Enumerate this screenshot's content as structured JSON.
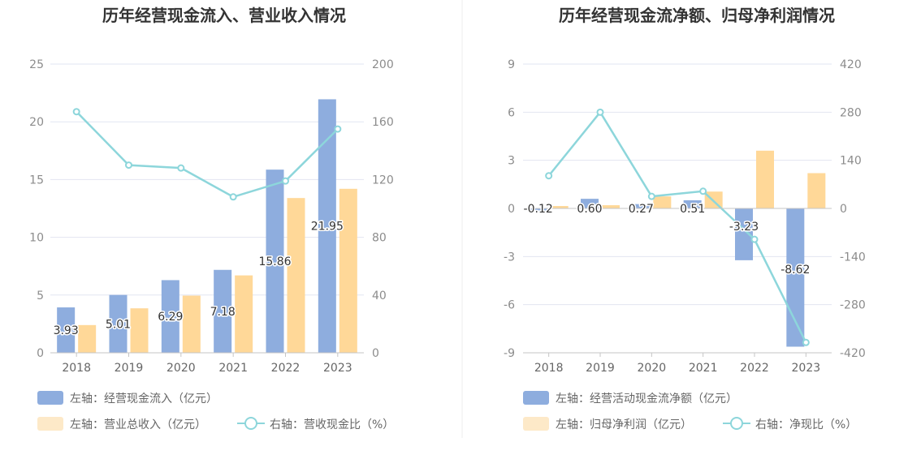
{
  "colors": {
    "bar_primary": "#8eadde",
    "bar_secondary": "#ffd898",
    "legend_secondary": "#fde9c8",
    "line": "#8dd6db",
    "grid": "#e2e5f1",
    "axis": "#c5c5c5",
    "divider": "#eeeeee"
  },
  "chart_data": [
    {
      "type": "bar",
      "title": "历年经营现金流入、营业收入情况",
      "categories": [
        "2018",
        "2019",
        "2020",
        "2021",
        "2022",
        "2023"
      ],
      "y_left": {
        "ylim": [
          0,
          25
        ],
        "ticks": [
          "0",
          "5",
          "10",
          "15",
          "20",
          "25"
        ]
      },
      "y_right": {
        "ylim": [
          0,
          200
        ],
        "ticks": [
          "0",
          "40",
          "80",
          "120",
          "160",
          "200"
        ]
      },
      "grid": true,
      "series": [
        {
          "name": "左轴：经营现金流入（亿元）",
          "type": "bar",
          "axis": "left",
          "values": [
            3.93,
            5.01,
            6.29,
            7.18,
            15.86,
            21.95
          ],
          "labels": [
            "3.93",
            "5.01",
            "6.29",
            "7.18",
            "15.86",
            "21.95"
          ]
        },
        {
          "name": "左轴：营业总收入（亿元）",
          "type": "bar",
          "axis": "left",
          "values": [
            2.4,
            3.85,
            4.95,
            6.7,
            13.4,
            14.2
          ]
        },
        {
          "name": "右轴：营收现金比（%）",
          "type": "line",
          "axis": "right",
          "values": [
            167,
            130,
            128,
            108,
            119,
            155
          ]
        }
      ],
      "legend_position": "bottom"
    },
    {
      "type": "bar",
      "title": "历年经营现金流净额、归母净利润情况",
      "categories": [
        "2018",
        "2019",
        "2020",
        "2021",
        "2022",
        "2023"
      ],
      "y_left": {
        "ylim": [
          -9,
          9
        ],
        "ticks": [
          "-9",
          "-6",
          "-3",
          "0",
          "3",
          "6",
          "9"
        ]
      },
      "y_right": {
        "ylim": [
          -420,
          420
        ],
        "ticks": [
          "-420",
          "-280",
          "-140",
          "0",
          "140",
          "280",
          "420"
        ]
      },
      "grid": true,
      "series": [
        {
          "name": "左轴：经营活动现金流净额（亿元）",
          "type": "bar",
          "axis": "left",
          "values": [
            -0.12,
            0.6,
            0.27,
            0.51,
            -3.23,
            -8.62
          ],
          "labels": [
            "-0.12",
            "0.60",
            "0.27",
            "0.51",
            "-3.23",
            "-8.62"
          ]
        },
        {
          "name": "左轴：归母净利润（亿元）",
          "type": "bar",
          "axis": "left",
          "values": [
            0.15,
            0.2,
            0.75,
            1.05,
            3.6,
            2.2
          ]
        },
        {
          "name": "右轴：净现比（%）",
          "type": "line",
          "axis": "right",
          "values": [
            95,
            280,
            35,
            50,
            -90,
            -390
          ]
        }
      ],
      "legend_position": "bottom"
    }
  ]
}
